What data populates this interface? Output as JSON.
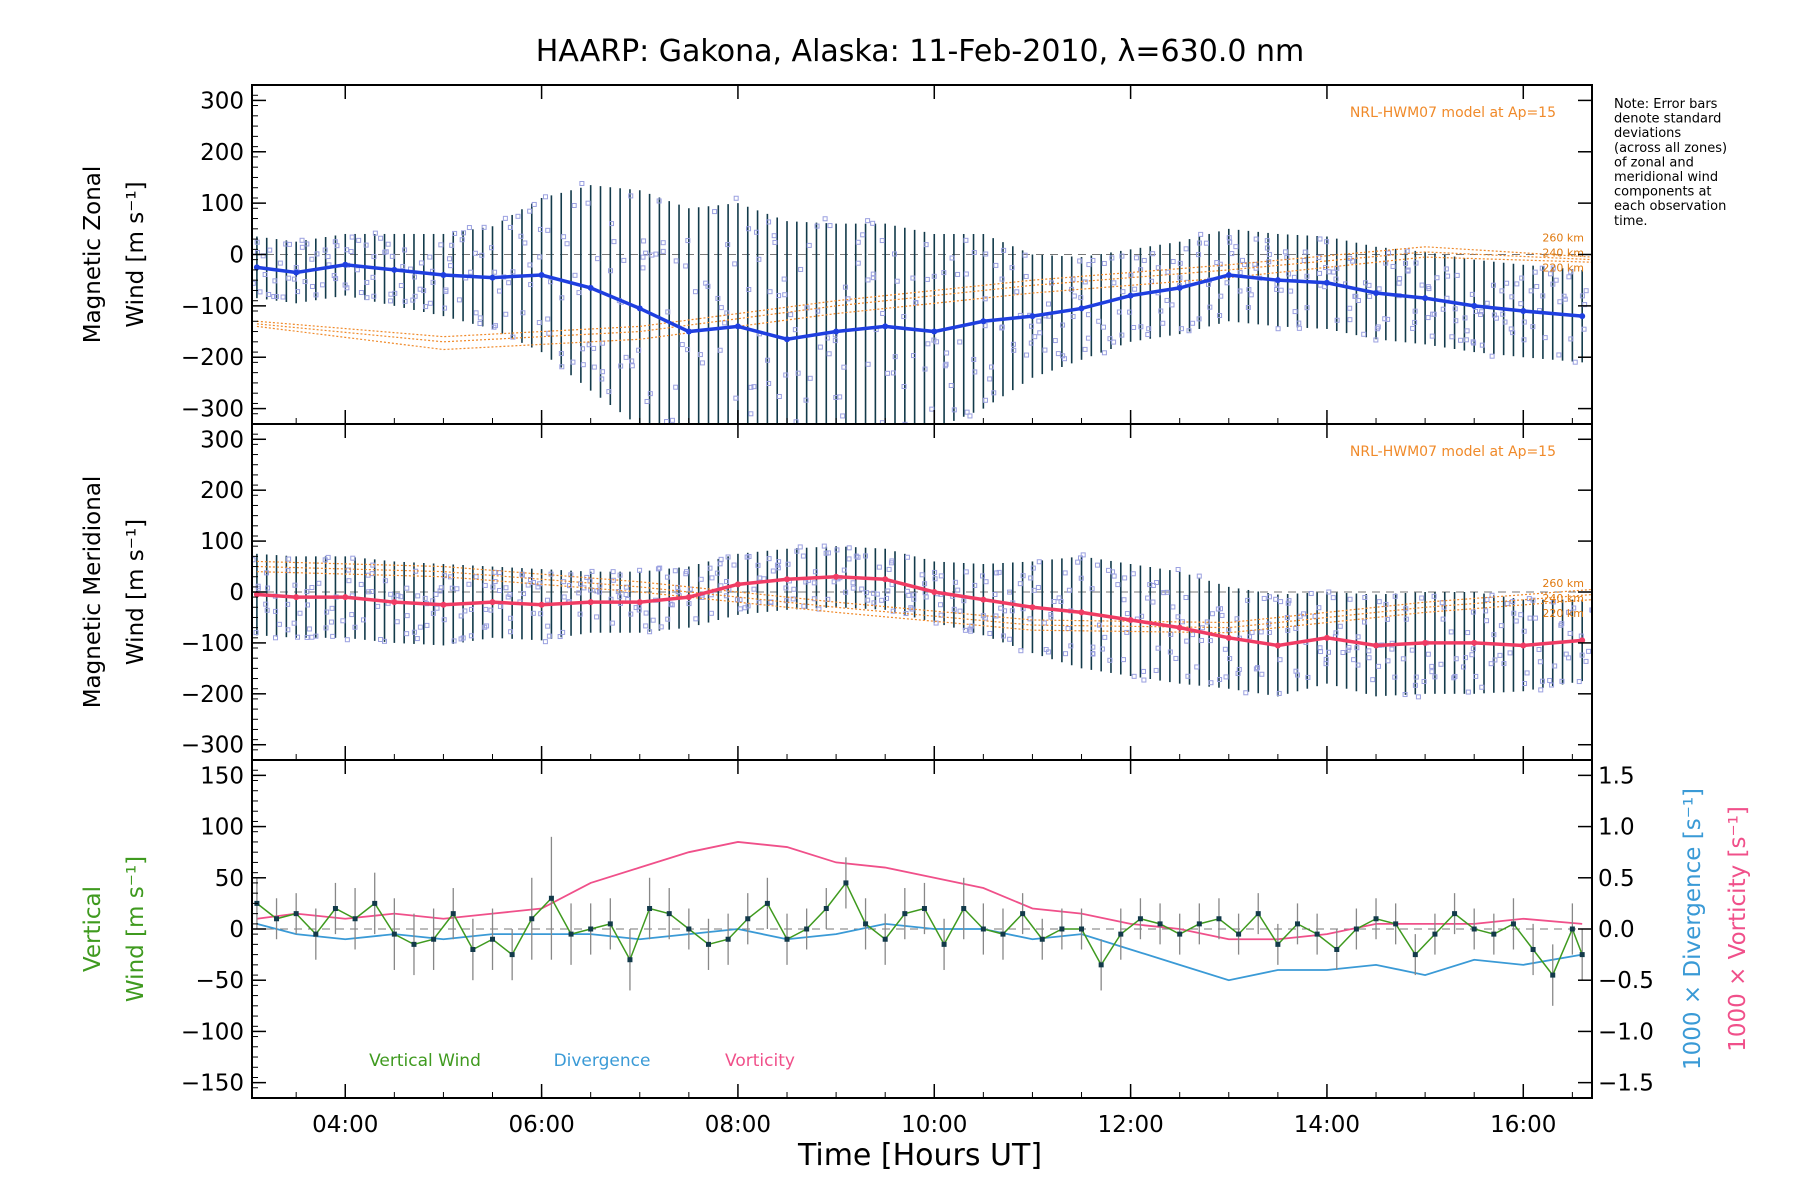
{
  "title": "HAARP: Gakona,  Alaska: 11-Feb-2010, λ=630.0 nm",
  "note_lines": [
    "Note: Error bars",
    "denote standard",
    "deviations",
    "(across all zones)",
    "of zonal and",
    "meridional wind",
    "components at",
    "each observation",
    "time."
  ],
  "xlabel": "Time [Hours UT]",
  "x_tick_labels": [
    "04:00",
    "06:00",
    "08:00",
    "10:00",
    "12:00",
    "14:00",
    "16:00"
  ],
  "colors": {
    "zonal": "#1f3fe0",
    "meridional": "#f03c64",
    "vertical": "#3f9a1f",
    "divergence": "#3a9ad6",
    "vorticity": "#f0508a",
    "model": "#f08a2a",
    "scatter": "#9aa0e0",
    "errbar": "#123a4a"
  },
  "chart_data": [
    {
      "type": "line",
      "panel": "zonal",
      "ylabel_line1": "Magnetic Zonal",
      "ylabel_line2": "Wind [m s⁻¹]",
      "ylim": [
        -330,
        330
      ],
      "y_ticks": [
        300,
        200,
        100,
        0,
        -100,
        -200,
        -300
      ],
      "xlim": [
        3.05,
        16.7
      ],
      "model_label": "NRL-HWM07 model at Ap=15",
      "model_alt_labels": [
        "260 km",
        "240 km",
        "220 km"
      ],
      "series_x": [
        3.1,
        3.5,
        4.0,
        4.5,
        5.0,
        5.5,
        6.0,
        6.5,
        7.0,
        7.5,
        8.0,
        8.5,
        9.0,
        9.5,
        10.0,
        10.5,
        11.0,
        11.5,
        12.0,
        12.5,
        13.0,
        13.5,
        14.0,
        14.5,
        15.0,
        15.5,
        16.0,
        16.6
      ],
      "series_y": [
        -25,
        -35,
        -20,
        -30,
        -40,
        -45,
        -40,
        -65,
        -105,
        -150,
        -140,
        -165,
        -150,
        -140,
        -150,
        -130,
        -120,
        -105,
        -80,
        -65,
        -40,
        -50,
        -55,
        -75,
        -85,
        -100,
        -110,
        -120
      ],
      "error_sd": [
        60,
        60,
        60,
        70,
        80,
        100,
        150,
        200,
        230,
        240,
        240,
        230,
        210,
        200,
        190,
        170,
        120,
        100,
        90,
        90,
        90,
        90,
        90,
        90,
        90,
        90,
        90,
        90
      ],
      "model_curves": [
        {
          "altitude": "260 km",
          "x": [
            3.1,
            5.0,
            7.0,
            9.0,
            11.0,
            13.0,
            15.0,
            16.7
          ],
          "y": [
            -130,
            -160,
            -140,
            -90,
            -50,
            -20,
            15,
            -5
          ]
        },
        {
          "altitude": "240 km",
          "x": [
            3.1,
            5.0,
            7.0,
            9.0,
            11.0,
            13.0,
            15.0,
            16.7
          ],
          "y": [
            -135,
            -170,
            -150,
            -100,
            -60,
            -30,
            5,
            -10
          ]
        },
        {
          "altitude": "220 km",
          "x": [
            3.1,
            5.0,
            7.0,
            9.0,
            11.0,
            13.0,
            15.0,
            16.7
          ],
          "y": [
            -140,
            -185,
            -165,
            -115,
            -75,
            -45,
            -5,
            -15
          ]
        }
      ]
    },
    {
      "type": "line",
      "panel": "meridional",
      "ylabel_line1": "Magnetic Meridional",
      "ylabel_line2": "Wind [m s⁻¹]",
      "ylim": [
        -330,
        330
      ],
      "y_ticks": [
        300,
        200,
        100,
        0,
        -100,
        -200,
        -300
      ],
      "xlim": [
        3.05,
        16.7
      ],
      "model_label": "NRL-HWM07 model at Ap=15",
      "model_alt_labels": [
        "260 km",
        "240 km",
        "220 km"
      ],
      "series_x": [
        3.1,
        3.5,
        4.0,
        4.5,
        5.0,
        5.5,
        6.0,
        6.5,
        7.0,
        7.5,
        8.0,
        8.5,
        9.0,
        9.5,
        10.0,
        10.5,
        11.0,
        11.5,
        12.0,
        12.5,
        13.0,
        13.5,
        14.0,
        14.5,
        15.0,
        15.5,
        16.0,
        16.6
      ],
      "series_y": [
        -5,
        -10,
        -10,
        -20,
        -25,
        -20,
        -25,
        -20,
        -20,
        -10,
        15,
        25,
        30,
        25,
        0,
        -15,
        -30,
        -40,
        -55,
        -70,
        -90,
        -105,
        -90,
        -105,
        -100,
        -100,
        -105,
        -95
      ],
      "error_sd": [
        80,
        80,
        80,
        80,
        80,
        70,
        70,
        60,
        60,
        60,
        60,
        60,
        60,
        60,
        60,
        70,
        90,
        110,
        110,
        110,
        100,
        100,
        90,
        100,
        100,
        100,
        90,
        80
      ],
      "model_curves": [
        {
          "altitude": "260 km",
          "x": [
            3.1,
            5.0,
            7.0,
            9.0,
            11.0,
            13.0,
            15.0,
            16.7
          ],
          "y": [
            60,
            50,
            20,
            -20,
            -55,
            -60,
            -20,
            5
          ]
        },
        {
          "altitude": "240 km",
          "x": [
            3.1,
            5.0,
            7.0,
            9.0,
            11.0,
            13.0,
            15.0,
            16.7
          ],
          "y": [
            50,
            40,
            10,
            -30,
            -65,
            -70,
            -30,
            -5
          ]
        },
        {
          "altitude": "220 km",
          "x": [
            3.1,
            5.0,
            7.0,
            9.0,
            11.0,
            13.0,
            15.0,
            16.7
          ],
          "y": [
            40,
            30,
            0,
            -40,
            -75,
            -80,
            -40,
            -15
          ]
        }
      ]
    },
    {
      "type": "line",
      "panel": "vertical",
      "ylabel_line1": "Vertical",
      "ylabel_line2": "Wind [m s⁻¹]",
      "right_label_div": "1000 × Divergence [s⁻¹]",
      "right_label_vort": "1000 × Vorticity [s⁻¹]",
      "ylim": [
        -165,
        165
      ],
      "y_ticks": [
        150,
        100,
        50,
        0,
        -50,
        -100,
        -150
      ],
      "y2lim": [
        -1.65,
        1.65
      ],
      "y2_ticks": [
        1.5,
        1.0,
        0.5,
        0.0,
        -0.5,
        -1.0,
        -1.5
      ],
      "y2_tick_labels": [
        "1.5",
        "1.0",
        "0.5",
        "0.0",
        "−0.5",
        "−1.0",
        "−1.5"
      ],
      "xlim": [
        3.05,
        16.7
      ],
      "legend": [
        "Vertical Wind",
        "Divergence",
        "Vorticity"
      ],
      "vertical_x": [
        3.1,
        3.3,
        3.5,
        3.7,
        3.9,
        4.1,
        4.3,
        4.5,
        4.7,
        4.9,
        5.1,
        5.3,
        5.5,
        5.7,
        5.9,
        6.1,
        6.3,
        6.5,
        6.7,
        6.9,
        7.1,
        7.3,
        7.5,
        7.7,
        7.9,
        8.1,
        8.3,
        8.5,
        8.7,
        8.9,
        9.1,
        9.3,
        9.5,
        9.7,
        9.9,
        10.1,
        10.3,
        10.5,
        10.7,
        10.9,
        11.1,
        11.3,
        11.5,
        11.7,
        11.9,
        12.1,
        12.3,
        12.5,
        12.7,
        12.9,
        13.1,
        13.3,
        13.5,
        13.7,
        13.9,
        14.1,
        14.3,
        14.5,
        14.7,
        14.9,
        15.1,
        15.3,
        15.5,
        15.7,
        15.9,
        16.1,
        16.3,
        16.5,
        16.6
      ],
      "vertical_y": [
        25,
        10,
        15,
        -5,
        20,
        10,
        25,
        -5,
        -15,
        -10,
        15,
        -20,
        -10,
        -25,
        10,
        30,
        -5,
        0,
        5,
        -30,
        20,
        15,
        0,
        -15,
        -10,
        10,
        25,
        -10,
        0,
        20,
        45,
        5,
        -10,
        15,
        20,
        -15,
        20,
        0,
        -5,
        15,
        -10,
        0,
        0,
        -35,
        -5,
        10,
        5,
        -5,
        5,
        10,
        -5,
        15,
        -15,
        5,
        -5,
        -20,
        0,
        10,
        5,
        -25,
        -5,
        15,
        0,
        -5,
        5,
        -20,
        -45,
        0,
        -25
      ],
      "vertical_err": [
        25,
        20,
        20,
        25,
        25,
        30,
        30,
        35,
        30,
        30,
        25,
        30,
        30,
        25,
        40,
        60,
        30,
        25,
        25,
        30,
        30,
        25,
        20,
        25,
        25,
        25,
        25,
        25,
        20,
        20,
        25,
        25,
        25,
        25,
        25,
        25,
        30,
        25,
        25,
        20,
        20,
        20,
        20,
        25,
        25,
        20,
        20,
        20,
        20,
        20,
        20,
        20,
        20,
        20,
        20,
        20,
        20,
        20,
        20,
        20,
        20,
        20,
        20,
        20,
        25,
        25,
        30,
        25,
        25
      ],
      "divergence_x": [
        3.1,
        3.5,
        4.0,
        4.5,
        5.0,
        5.5,
        6.0,
        6.5,
        7.0,
        7.5,
        8.0,
        8.5,
        9.0,
        9.5,
        10.0,
        10.5,
        11.0,
        11.5,
        12.0,
        12.5,
        13.0,
        13.5,
        14.0,
        14.5,
        15.0,
        15.5,
        16.0,
        16.6
      ],
      "divergence_y": [
        0.05,
        -0.05,
        -0.1,
        -0.05,
        -0.1,
        -0.05,
        -0.05,
        -0.05,
        -0.1,
        -0.05,
        0.0,
        -0.1,
        -0.05,
        0.05,
        0.0,
        0.0,
        -0.1,
        -0.05,
        -0.2,
        -0.35,
        -0.5,
        -0.4,
        -0.4,
        -0.35,
        -0.45,
        -0.3,
        -0.35,
        -0.25
      ],
      "vorticity_x": [
        3.1,
        3.5,
        4.0,
        4.5,
        5.0,
        5.5,
        6.0,
        6.5,
        7.0,
        7.5,
        8.0,
        8.5,
        9.0,
        9.5,
        10.0,
        10.5,
        11.0,
        11.5,
        12.0,
        12.5,
        13.0,
        13.5,
        14.0,
        14.5,
        15.0,
        15.5,
        16.0,
        16.6
      ],
      "vorticity_y": [
        0.1,
        0.15,
        0.1,
        0.15,
        0.1,
        0.15,
        0.2,
        0.45,
        0.6,
        0.75,
        0.85,
        0.8,
        0.65,
        0.6,
        0.5,
        0.4,
        0.2,
        0.15,
        0.05,
        0.0,
        -0.1,
        -0.1,
        -0.05,
        0.05,
        0.05,
        0.05,
        0.1,
        0.05
      ]
    }
  ]
}
